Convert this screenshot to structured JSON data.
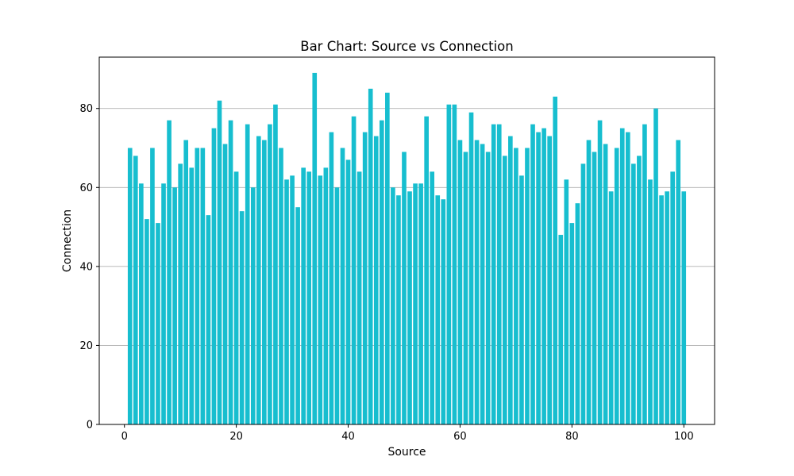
{
  "chart_data": {
    "type": "bar",
    "title": "Bar Chart: Source vs Connection",
    "xlabel": "Source",
    "ylabel": "Connection",
    "xlim": [
      -4.5,
      105.5
    ],
    "ylim": [
      0,
      93
    ],
    "xticks": [
      0,
      20,
      40,
      60,
      80,
      100
    ],
    "yticks": [
      0,
      20,
      40,
      60,
      80
    ],
    "grid": "y-axis",
    "bar_color": "#17becf",
    "x": [
      1,
      2,
      3,
      4,
      5,
      6,
      7,
      8,
      9,
      10,
      11,
      12,
      13,
      14,
      15,
      16,
      17,
      18,
      19,
      20,
      21,
      22,
      23,
      24,
      25,
      26,
      27,
      28,
      29,
      30,
      31,
      32,
      33,
      34,
      35,
      36,
      37,
      38,
      39,
      40,
      41,
      42,
      43,
      44,
      45,
      46,
      47,
      48,
      49,
      50,
      51,
      52,
      53,
      54,
      55,
      56,
      57,
      58,
      59,
      60,
      61,
      62,
      63,
      64,
      65,
      66,
      67,
      68,
      69,
      70,
      71,
      72,
      73,
      74,
      75,
      76,
      77,
      78,
      79,
      80,
      81,
      82,
      83,
      84,
      85,
      86,
      87,
      88,
      89,
      90,
      91,
      92,
      93,
      94,
      95,
      96,
      97,
      98,
      99,
      100
    ],
    "values": [
      70,
      68,
      61,
      52,
      70,
      51,
      61,
      77,
      60,
      66,
      72,
      65,
      70,
      70,
      53,
      75,
      82,
      71,
      77,
      64,
      54,
      76,
      60,
      73,
      72,
      76,
      81,
      70,
      62,
      63,
      55,
      65,
      64,
      89,
      63,
      65,
      74,
      60,
      70,
      67,
      78,
      64,
      74,
      85,
      73,
      77,
      84,
      60,
      58,
      69,
      59,
      61,
      61,
      78,
      64,
      58,
      57,
      81,
      81,
      72,
      69,
      79,
      72,
      71,
      69,
      76,
      76,
      68,
      73,
      70,
      63,
      70,
      76,
      74,
      75,
      73,
      83,
      48,
      62,
      51,
      56,
      66,
      72,
      69,
      77,
      71,
      59,
      70,
      75,
      74,
      66,
      68,
      76,
      62,
      80,
      58,
      59,
      64,
      72,
      59
    ]
  }
}
